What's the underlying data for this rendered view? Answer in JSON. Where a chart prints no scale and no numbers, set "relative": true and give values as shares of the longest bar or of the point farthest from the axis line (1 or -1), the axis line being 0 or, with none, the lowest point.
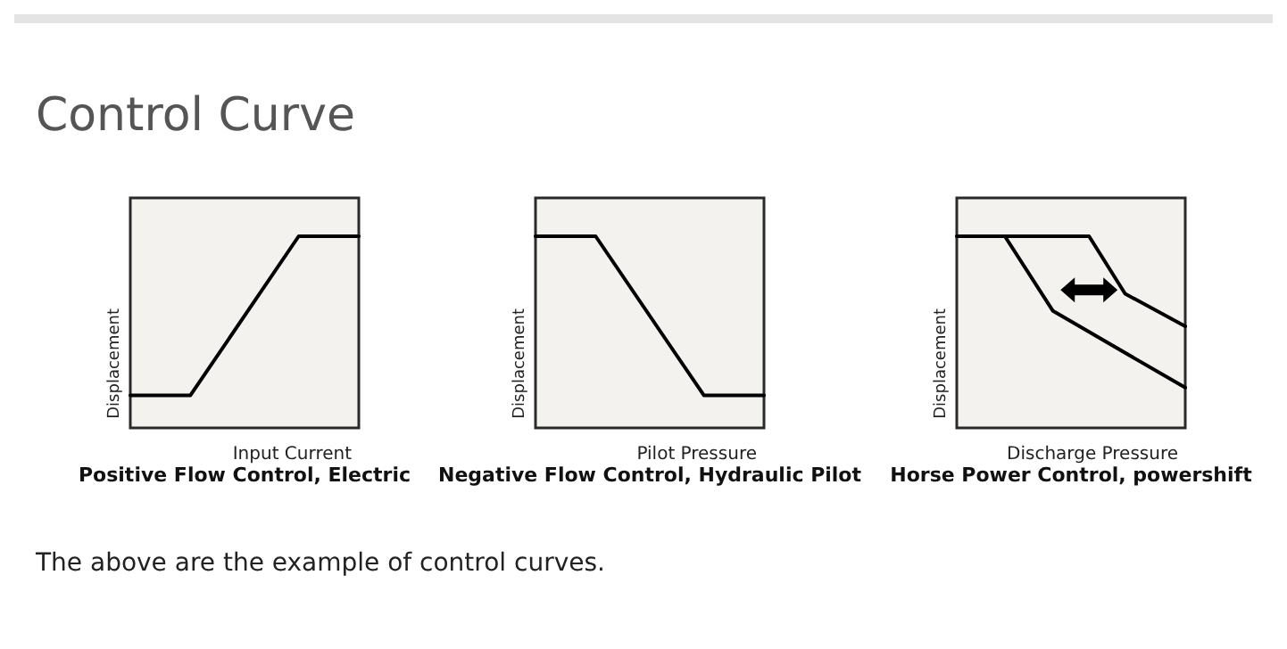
{
  "chart_data": [
    {
      "type": "line",
      "title": "Control Curve",
      "subtitle": "Positive Flow Control, Electric",
      "xlabel": "Input Current",
      "ylabel": "Displacement",
      "relative": true,
      "grid": false,
      "marker": "none",
      "line_style": "solid",
      "categories": [
        null,
        null,
        null,
        null,
        null,
        null,
        null,
        null,
        null,
        null,
        null,
        null,
        null,
        null,
        null,
        null,
        null,
        null,
        null,
        null
      ],
      "series": [
        {
          "color": "#000000",
          "values": [
            0.17,
            null,
            null,
            null,
            null,
            0.17,
            null,
            null,
            null,
            null,
            null,
            null,
            null,
            null,
            1,
            null,
            null,
            null,
            null,
            1
          ]
        }
      ]
    },
    {
      "type": "line",
      "subtitle": "Negative Flow Control, Hydraulic Pilot",
      "xlabel": "Pilot Pressure",
      "ylabel": "Displacement",
      "relative": true,
      "grid": false,
      "marker": "none",
      "line_style": "solid",
      "categories": [
        null,
        null,
        null,
        null,
        null,
        null,
        null,
        null,
        null,
        null,
        null,
        null,
        null,
        null,
        null,
        null,
        null,
        null,
        null,
        null
      ],
      "series": [
        {
          "color": "#000000",
          "values": [
            1,
            null,
            null,
            null,
            null,
            1,
            null,
            null,
            null,
            null,
            null,
            null,
            null,
            null,
            0.17,
            null,
            null,
            null,
            null,
            0.17
          ]
        }
      ]
    },
    {
      "type": "line",
      "subtitle": "Horse Power Control, powershift",
      "xlabel": "Discharge Pressure",
      "ylabel": "Displacement",
      "relative": true,
      "grid": false,
      "marker": "none",
      "line_style": "solid",
      "annotations": [
        "The above are the example of control curves."
      ],
      "categories": [
        null,
        null,
        null,
        null,
        null,
        null,
        null,
        null,
        null,
        null,
        null,
        null,
        null,
        null,
        null,
        null,
        null,
        null,
        null,
        null
      ],
      "series": [
        {
          "color": "#000000",
          "values": [
            1,
            null,
            null,
            null,
            null,
            null,
            null,
            null,
            null,
            null,
            null,
            1,
            null,
            null,
            0.7,
            null,
            null,
            null,
            null,
            0.53
          ]
        },
        {
          "color": "#000000",
          "values": [
            null,
            null,
            null,
            null,
            1,
            null,
            null,
            null,
            0.61,
            null,
            null,
            null,
            null,
            null,
            null,
            null,
            null,
            null,
            null,
            0.21
          ]
        }
      ]
    }
  ]
}
